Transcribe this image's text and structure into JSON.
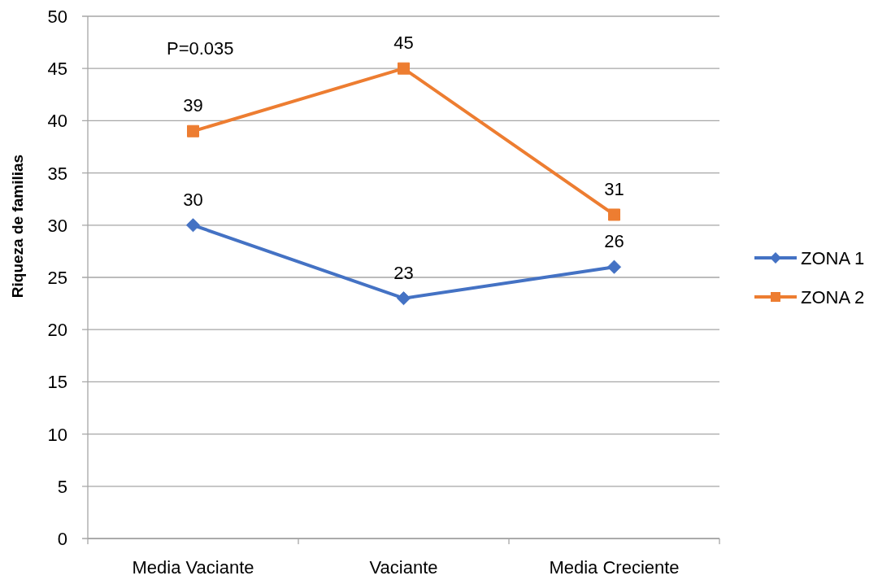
{
  "chart_data": {
    "type": "line",
    "ylabel": "Riqueza de familias",
    "annotations": [
      "P=0.035"
    ],
    "categories": [
      "Media Vaciante",
      "Vaciante",
      "Media Creciente"
    ],
    "series": [
      {
        "name": "ZONA 1",
        "color": "#4472c4",
        "values": [
          30,
          23,
          26
        ],
        "marker": "diamond"
      },
      {
        "name": "ZONA 2",
        "color": "#ed7d31",
        "values": [
          39,
          45,
          31
        ],
        "marker": "square"
      }
    ],
    "ylim": [
      0,
      50
    ],
    "yticks": [
      0,
      5,
      10,
      15,
      20,
      25,
      30,
      35,
      40,
      45,
      50
    ],
    "grid": "y",
    "legend": "right",
    "data_labels": true,
    "line_style": "solid"
  }
}
